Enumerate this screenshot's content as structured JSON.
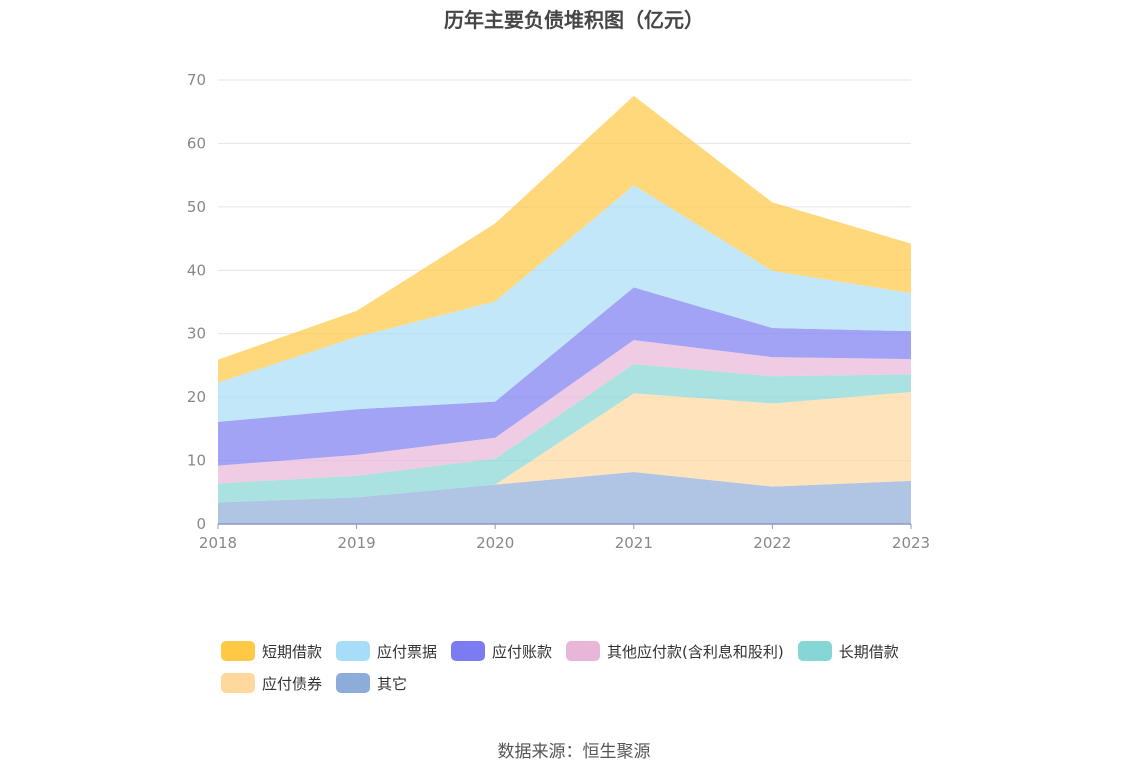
{
  "chart_data": {
    "type": "area",
    "stacked": true,
    "title": "历年主要负债堆积图（亿元）",
    "categories": [
      "2018",
      "2019",
      "2020",
      "2021",
      "2022",
      "2023"
    ],
    "ylim": [
      0,
      70
    ],
    "yticks": [
      0,
      10,
      20,
      30,
      40,
      50,
      60,
      70
    ],
    "grid": true,
    "legend_position": "bottom",
    "series": [
      {
        "name": "其它",
        "color": "#8EACD9",
        "values": [
          3.4,
          4.2,
          6.2,
          8.2,
          5.9,
          6.8
        ]
      },
      {
        "name": "应付债券",
        "color": "#FFD89E",
        "values": [
          0,
          0,
          0,
          12.4,
          13.1,
          14.0
        ]
      },
      {
        "name": "长期借款",
        "color": "#86D6D6",
        "values": [
          3.0,
          3.4,
          4.1,
          4.6,
          4.3,
          2.8
        ]
      },
      {
        "name": "其他应付款(含利息和股利)",
        "color": "#E8B6D8",
        "values": [
          2.8,
          3.3,
          3.3,
          3.8,
          3.0,
          2.4
        ]
      },
      {
        "name": "应付账款",
        "color": "#7C7CF2",
        "values": [
          6.9,
          7.2,
          5.7,
          8.3,
          4.6,
          4.4
        ]
      },
      {
        "name": "应付票据",
        "color": "#A8DDF7",
        "values": [
          6.2,
          11.4,
          15.8,
          16.1,
          9.0,
          6.0
        ]
      },
      {
        "name": "短期借款",
        "color": "#FFC845",
        "values": [
          3.6,
          4.1,
          12.3,
          14.1,
          10.8,
          7.8
        ]
      }
    ],
    "legend_order": [
      "短期借款",
      "应付票据",
      "应付账款",
      "其他应付款(含利息和股利)",
      "长期借款",
      "应付债券",
      "其它"
    ]
  },
  "source": "数据来源：恒生聚源"
}
